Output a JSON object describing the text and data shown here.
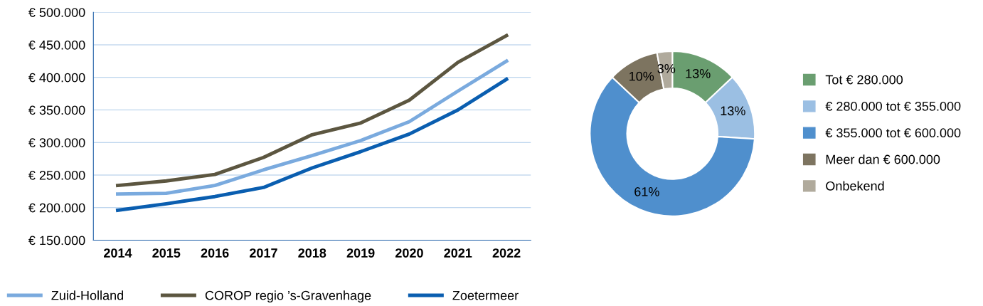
{
  "chart_data": [
    {
      "type": "line",
      "categories": [
        "2014",
        "2015",
        "2016",
        "2017",
        "2018",
        "2019",
        "2020",
        "2021",
        "2022"
      ],
      "series": [
        {
          "name": "Zuid-Holland",
          "color": "#7aaade",
          "values": [
            221000,
            222000,
            234000,
            258000,
            280000,
            303000,
            332000,
            379000,
            425000
          ]
        },
        {
          "name": "COROP regio ’s-Gravenhage",
          "color": "#5c5640",
          "values": [
            234000,
            241000,
            251000,
            277000,
            312000,
            330000,
            365000,
            423000,
            464000
          ]
        },
        {
          "name": "Zoetermeer",
          "color": "#0a5eb0",
          "values": [
            196000,
            206000,
            217000,
            231000,
            261000,
            286000,
            313000,
            350000,
            397000
          ]
        }
      ],
      "ylim": [
        150000,
        500000
      ],
      "yticks": [
        {
          "value": 150000,
          "label": "€ 150.000"
        },
        {
          "value": 200000,
          "label": "€ 200.000"
        },
        {
          "value": 250000,
          "label": "€ 250.000"
        },
        {
          "value": 300000,
          "label": "€ 300.000"
        },
        {
          "value": 350000,
          "label": "€ 350.000"
        },
        {
          "value": 400000,
          "label": "€ 400.000"
        },
        {
          "value": 450000,
          "label": "€ 450.000"
        },
        {
          "value": 500000,
          "label": "€ 500.000"
        }
      ],
      "grid": "y",
      "legend": "bottom",
      "marker": "none",
      "line_style": "solid"
    },
    {
      "type": "donut",
      "categories": [
        "Tot € 280.000",
        "€ 280.000 tot € 355.000",
        "€ 355.000 tot € 600.000",
        "Meer dan € 600.000",
        "Onbekend"
      ],
      "values": [
        13,
        13,
        61,
        10,
        3
      ],
      "colors": [
        "#6a9e70",
        "#9bbfe3",
        "#4f8fcd",
        "#7d7460",
        "#b0aa9c"
      ],
      "value_labels": [
        "13%",
        "13%",
        "61%",
        "10%",
        "3%"
      ],
      "legend": "right"
    }
  ]
}
